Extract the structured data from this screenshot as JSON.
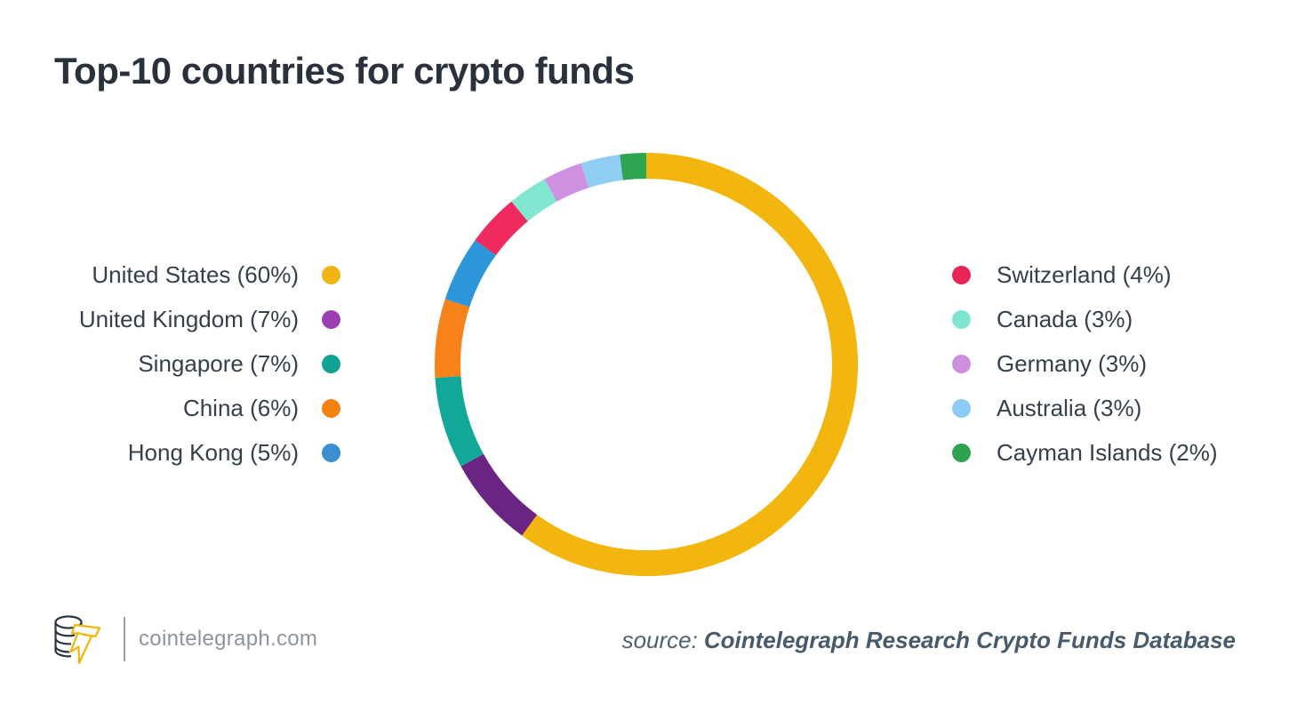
{
  "title": "Top-10 countries for crypto funds",
  "chart_data": {
    "type": "pie",
    "subtype": "donut",
    "title": "Top-10 countries for crypto funds",
    "unit": "%",
    "start_angle_deg": 0,
    "direction": "clockwise",
    "legend_position": "split-left-right",
    "segments": [
      {
        "country": "United States",
        "value": 60,
        "legend_label": "United States (60%)",
        "color": "#f2b60e",
        "dot_color": "#efb512",
        "legend_side": "left"
      },
      {
        "country": "United Kingdom",
        "value": 7,
        "legend_label": "United Kingdom (7%)",
        "color": "#6a2484",
        "dot_color": "#9c3eb1",
        "legend_side": "left"
      },
      {
        "country": "Singapore",
        "value": 7,
        "legend_label": "Singapore (7%)",
        "color": "#11a89a",
        "dot_color": "#11a195",
        "legend_side": "left"
      },
      {
        "country": "China",
        "value": 6,
        "legend_label": "China (6%)",
        "color": "#f8821a",
        "dot_color": "#f5820f",
        "legend_side": "left"
      },
      {
        "country": "Hong Kong",
        "value": 5,
        "legend_label": "Hong Kong (5%)",
        "color": "#2d96db",
        "dot_color": "#3a8fd0",
        "legend_side": "left"
      },
      {
        "country": "Switzerland",
        "value": 4,
        "legend_label": "Switzerland (4%)",
        "color": "#ee2a5f",
        "dot_color": "#e92558",
        "legend_side": "right"
      },
      {
        "country": "Canada",
        "value": 3,
        "legend_label": "Canada (3%)",
        "color": "#82e7d1",
        "dot_color": "#7ee5cf",
        "legend_side": "right"
      },
      {
        "country": "Germany",
        "value": 3,
        "legend_label": "Germany (3%)",
        "color": "#cf92e0",
        "dot_color": "#cd8fdf",
        "legend_side": "right"
      },
      {
        "country": "Australia",
        "value": 3,
        "legend_label": "Australia (3%)",
        "color": "#8fcdf4",
        "dot_color": "#8ccbf3",
        "legend_side": "right"
      },
      {
        "country": "Cayman Islands",
        "value": 2,
        "legend_label": "Cayman Islands (2%)",
        "color": "#30a551",
        "dot_color": "#2fa24f",
        "legend_side": "right"
      }
    ]
  },
  "footer": {
    "brand": "cointelegraph.com",
    "source_prefix": "source:",
    "source_name": "Cointelegraph Research Crypto Funds Database"
  },
  "colors": {
    "title_text": "#29323c",
    "legend_text": "#34404c",
    "brand_text": "#8e949d",
    "source_text": "#4d6070",
    "logo_coins_stroke": "#2b3540",
    "logo_bolt_stroke": "#f1b50e",
    "background": "#ffffff"
  }
}
